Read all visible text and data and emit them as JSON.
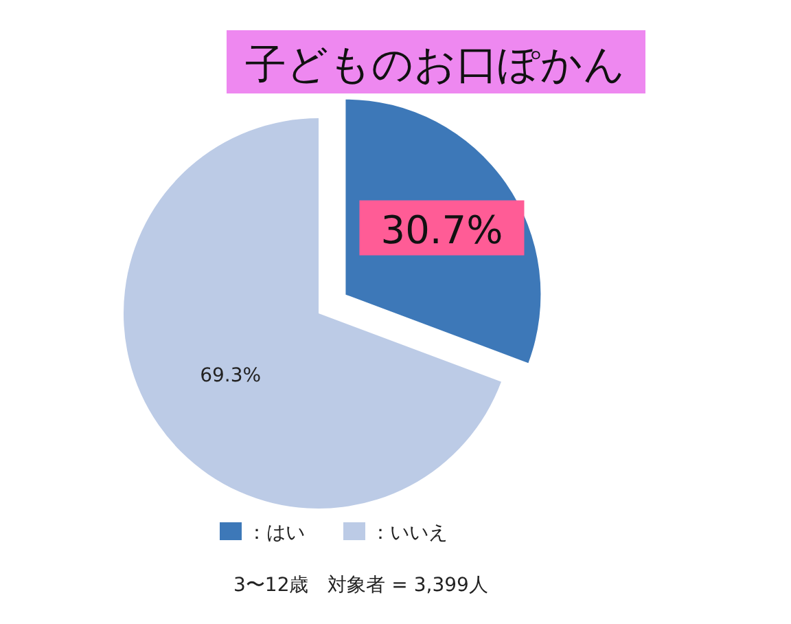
{
  "chart_data": {
    "type": "pie",
    "title": "子どものお口ぽかん",
    "categories": [
      "：はい",
      "：いいえ"
    ],
    "values": [
      30.7,
      69.3
    ],
    "colors": [
      "#3d78b8",
      "#bccbe6"
    ],
    "value_labels": [
      "30.7%",
      "69.3%"
    ],
    "legend": "bottom",
    "annotations": [
      "3〜12歳　対象者 = 3,399人"
    ]
  }
}
